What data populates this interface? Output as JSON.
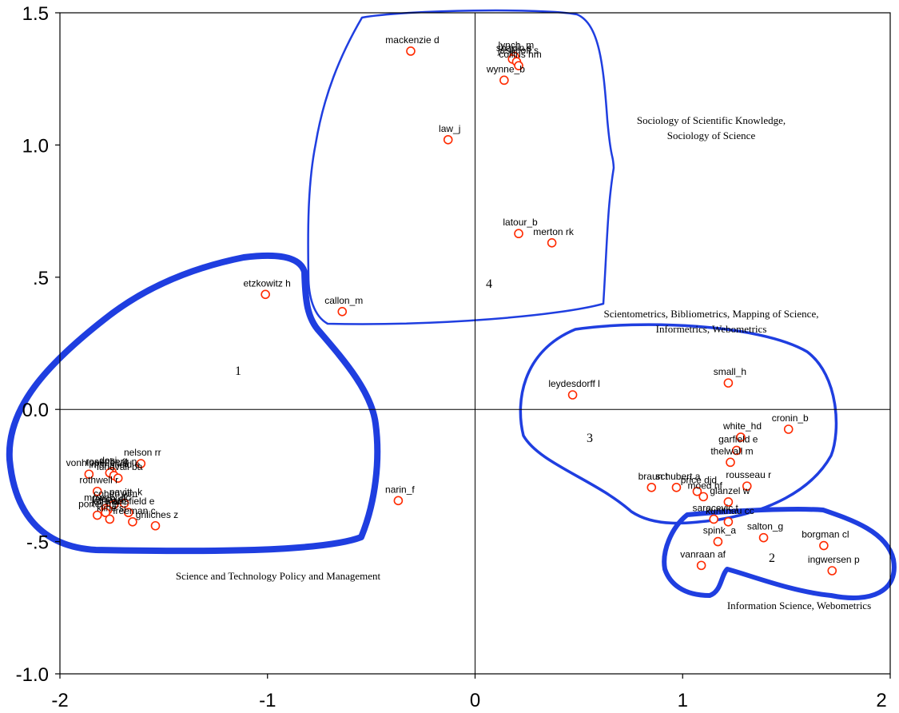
{
  "chart_data": {
    "type": "scatter",
    "title": "",
    "xlabel": "",
    "ylabel": "",
    "xlim": [
      -2,
      2
    ],
    "ylim": [
      -1,
      1.5
    ],
    "xticks": [
      {
        "value": -2,
        "label": "-2"
      },
      {
        "value": -1,
        "label": "-1"
      },
      {
        "value": 0,
        "label": "0"
      },
      {
        "value": 1,
        "label": "1"
      },
      {
        "value": 2,
        "label": "2"
      }
    ],
    "yticks": [
      {
        "value": 1.5,
        "label": "1.5"
      },
      {
        "value": 1.0,
        "label": "1.0"
      },
      {
        "value": 0.5,
        "label": ".5"
      },
      {
        "value": 0.0,
        "label": "0.0"
      },
      {
        "value": -0.5,
        "label": "-.5"
      },
      {
        "value": -1.0,
        "label": "-1.0"
      }
    ],
    "marker_color": "#ff2a00",
    "cluster_color": "#1f3ee0",
    "points": [
      {
        "label": "mackenzie d",
        "x": -0.31,
        "y": 1.355
      },
      {
        "label": "lynch_m",
        "x": 0.19,
        "y": 1.335
      },
      {
        "label": "shapin s",
        "x": 0.18,
        "y": 1.325
      },
      {
        "label": "jasanoff s",
        "x": 0.2,
        "y": 1.315
      },
      {
        "label": "collins hm",
        "x": 0.21,
        "y": 1.3
      },
      {
        "label": "wynne_b",
        "x": 0.14,
        "y": 1.245
      },
      {
        "label": "law_j",
        "x": -0.13,
        "y": 1.02
      },
      {
        "label": "latour_b",
        "x": 0.21,
        "y": 0.665
      },
      {
        "label": "merton rk",
        "x": 0.37,
        "y": 0.63
      },
      {
        "label": "etzkowitz h",
        "x": -1.01,
        "y": 0.435
      },
      {
        "label": "callon_m",
        "x": -0.64,
        "y": 0.37
      },
      {
        "label": "leydesdorff l",
        "x": 0.47,
        "y": 0.055
      },
      {
        "label": "small_h",
        "x": 1.22,
        "y": 0.1
      },
      {
        "label": "cronin_b",
        "x": 1.51,
        "y": -0.075
      },
      {
        "label": "white_hd",
        "x": 1.28,
        "y": -0.105
      },
      {
        "label": "garfield e",
        "x": 1.26,
        "y": -0.155
      },
      {
        "label": "thelwall m",
        "x": 1.23,
        "y": -0.2
      },
      {
        "label": "rousseau r",
        "x": 1.31,
        "y": -0.29
      },
      {
        "label": "braun t",
        "x": 0.85,
        "y": -0.295
      },
      {
        "label": "schubert a",
        "x": 0.97,
        "y": -0.295
      },
      {
        "label": "price djd",
        "x": 1.07,
        "y": -0.31
      },
      {
        "label": "moed hf",
        "x": 1.1,
        "y": -0.33
      },
      {
        "label": "glanzel w",
        "x": 1.22,
        "y": -0.35
      },
      {
        "label": "saracevic t",
        "x": 1.15,
        "y": -0.415
      },
      {
        "label": "kuhlthau cc",
        "x": 1.22,
        "y": -0.425
      },
      {
        "label": "spink_a",
        "x": 1.17,
        "y": -0.5
      },
      {
        "label": "salton_g",
        "x": 1.39,
        "y": -0.485
      },
      {
        "label": "vanraan af",
        "x": 1.09,
        "y": -0.59
      },
      {
        "label": "borgman cl",
        "x": 1.68,
        "y": -0.515
      },
      {
        "label": "ingwersen p",
        "x": 1.72,
        "y": -0.61
      },
      {
        "label": "dosi_g",
        "x": -1.75,
        "y": -0.235
      },
      {
        "label": "nelson rr",
        "x": -1.61,
        "y": -0.205
      },
      {
        "label": "rosenberg n",
        "x": -1.76,
        "y": -0.24
      },
      {
        "label": "vonhippel e",
        "x": -1.86,
        "y": -0.245
      },
      {
        "label": "mansfield e",
        "x": -1.74,
        "y": -0.25
      },
      {
        "label": "lundvall ba",
        "x": -1.72,
        "y": -0.26
      },
      {
        "label": "rothwell r",
        "x": -1.82,
        "y": -0.31
      },
      {
        "label": "cohen wm",
        "x": -1.74,
        "y": -0.36
      },
      {
        "label": "pavitt_k",
        "x": -1.69,
        "y": -0.355
      },
      {
        "label": "mowery dc",
        "x": -1.78,
        "y": -0.375
      },
      {
        "label": "teece dj",
        "x": -1.77,
        "y": -0.38
      },
      {
        "label": "porter me",
        "x": -1.82,
        "y": -0.4
      },
      {
        "label": "jaffe ab",
        "x": -1.78,
        "y": -0.39
      },
      {
        "label": "mansfield e",
        "x": -1.67,
        "y": -0.39
      },
      {
        "label": "griliches z",
        "x": -1.54,
        "y": -0.44
      },
      {
        "label": "kline sj",
        "x": -1.76,
        "y": -0.415
      },
      {
        "label": "freeman c",
        "x": -1.65,
        "y": -0.425
      },
      {
        "label": "narin_f",
        "x": -0.37,
        "y": -0.345
      }
    ],
    "clusters": [
      {
        "number": "1",
        "name": "Science and Technology Policy and Management"
      },
      {
        "number": "2",
        "name": "Information Science, Webometrics"
      },
      {
        "number": "3",
        "name": "Scientometrics,  Bibliometrics, Mapping of Science, Informetrics, Webometrics"
      },
      {
        "number": "4",
        "name": "Sociology of Scientific Knowledge, Sociology of Science"
      }
    ]
  }
}
